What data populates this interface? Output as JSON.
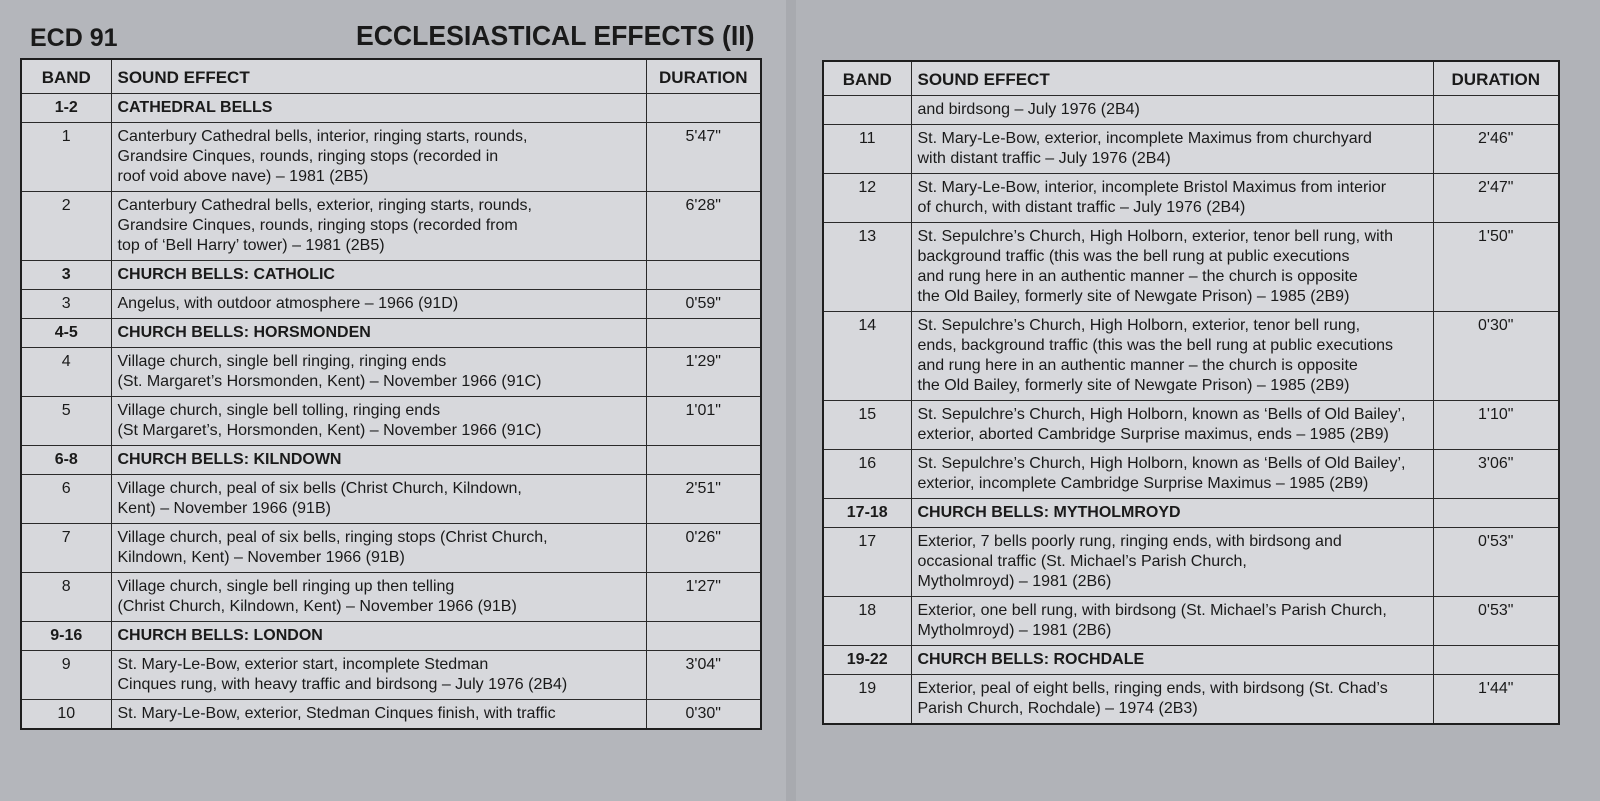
{
  "header": {
    "code": "ECD 91",
    "title": "ECCLESIASTICAL EFFECTS (II)"
  },
  "tables": [
    {
      "columns": [
        "BAND",
        "SOUND EFFECT",
        "DURATION"
      ],
      "rows": [
        {
          "band": "1-2",
          "heading": "CATHEDRAL BELLS"
        },
        {
          "band": "1",
          "lines": [
            "Canterbury Cathedral bells, interior, ringing starts, rounds,",
            "Grandsire Cinques, rounds, ringing stops (recorded in",
            "roof void above nave) – 1981 (2B5)"
          ],
          "duration": "5'47\""
        },
        {
          "band": "2",
          "lines": [
            "Canterbury Cathedral bells, exterior, ringing starts, rounds,",
            "Grandsire Cinques, rounds, ringing stops (recorded from",
            "top of ‘Bell Harry’ tower) – 1981 (2B5)"
          ],
          "duration": "6'28\""
        },
        {
          "band": "3",
          "heading": "CHURCH BELLS: CATHOLIC"
        },
        {
          "band": "3",
          "lines": [
            "Angelus, with outdoor atmosphere – 1966 (91D)"
          ],
          "duration": "0'59\""
        },
        {
          "band": "4-5",
          "heading": "CHURCH BELLS: HORSMONDEN"
        },
        {
          "band": "4",
          "lines": [
            "Village church, single bell ringing, ringing ends",
            "(St. Margaret’s Horsmonden, Kent) – November 1966 (91C)"
          ],
          "duration": "1'29\""
        },
        {
          "band": "5",
          "lines": [
            "Village church, single bell tolling, ringing ends",
            "(St Margaret’s, Horsmonden, Kent) – November 1966 (91C)"
          ],
          "duration": "1'01\""
        },
        {
          "band": "6-8",
          "heading": "CHURCH BELLS: KILNDOWN"
        },
        {
          "band": "6",
          "lines": [
            "Village church, peal of six bells (Christ Church, Kilndown,",
            "Kent) – November 1966 (91B)"
          ],
          "duration": "2'51\""
        },
        {
          "band": "7",
          "lines": [
            "Village church, peal of six bells, ringing stops (Christ Church,",
            "Kilndown, Kent) – November 1966 (91B)"
          ],
          "duration": "0'26\""
        },
        {
          "band": "8",
          "lines": [
            "Village church, single bell ringing up then telling",
            "(Christ Church, Kilndown, Kent) – November 1966 (91B)"
          ],
          "duration": "1'27\""
        },
        {
          "band": "9-16",
          "heading": "CHURCH BELLS: LONDON"
        },
        {
          "band": "9",
          "lines": [
            "St. Mary-Le-Bow, exterior start, incomplete Stedman",
            "Cinques rung, with heavy traffic and birdsong – July 1976 (2B4)"
          ],
          "duration": "3'04\""
        },
        {
          "band": "10",
          "lines": [
            "St. Mary-Le-Bow, exterior, Stedman Cinques finish, with traffic"
          ],
          "duration": "0'30\""
        }
      ]
    },
    {
      "columns": [
        "BAND",
        "SOUND EFFECT",
        "DURATION"
      ],
      "rows": [
        {
          "lines": [
            "and birdsong – July 1976 (2B4)"
          ]
        },
        {
          "band": "11",
          "lines": [
            "St. Mary-Le-Bow, exterior, incomplete Maximus from churchyard",
            "with distant traffic – July 1976 (2B4)"
          ],
          "duration": "2'46\""
        },
        {
          "band": "12",
          "lines": [
            "St. Mary-Le-Bow, interior, incomplete Bristol Maximus from interior",
            "of church, with distant traffic – July 1976 (2B4)"
          ],
          "duration": "2'47\""
        },
        {
          "band": "13",
          "lines": [
            "St. Sepulchre’s Church, High Holborn, exterior, tenor bell rung, with",
            "background traffic (this was the bell rung at public executions",
            "and rung here in an authentic manner – the church is opposite",
            "the Old Bailey, formerly site of Newgate Prison) – 1985 (2B9)"
          ],
          "duration": "1'50\""
        },
        {
          "band": "14",
          "lines": [
            "St. Sepulchre’s Church, High Holborn, exterior, tenor bell rung,",
            "ends, background traffic (this was the bell rung at public executions",
            "and rung here in an authentic manner – the church is opposite",
            "the Old Bailey, formerly site of Newgate Prison) – 1985 (2B9)"
          ],
          "duration": "0'30\""
        },
        {
          "band": "15",
          "lines": [
            "St. Sepulchre’s Church, High Holborn, known as ‘Bells of Old Bailey’,",
            "exterior, aborted Cambridge Surprise maximus, ends – 1985 (2B9)"
          ],
          "duration": "1'10\""
        },
        {
          "band": "16",
          "lines": [
            "St. Sepulchre’s Church, High Holborn, known as ‘Bells of Old Bailey’,",
            "exterior, incomplete Cambridge Surprise Maximus – 1985 (2B9)"
          ],
          "duration": "3'06\""
        },
        {
          "band": "17-18",
          "heading": "CHURCH BELLS: MYTHOLMROYD"
        },
        {
          "band": "17",
          "lines": [
            "Exterior, 7 bells poorly rung, ringing ends, with birdsong and",
            "occasional traffic (St. Michael’s Parish Church,",
            "Mytholmroyd) – 1981 (2B6)"
          ],
          "duration": "0'53\""
        },
        {
          "band": "18",
          "lines": [
            "Exterior, one bell rung, with birdsong (St. Michael’s Parish Church,",
            "Mytholmroyd) – 1981 (2B6)"
          ],
          "duration": "0'53\""
        },
        {
          "band": "19-22",
          "heading": "CHURCH BELLS: ROCHDALE"
        },
        {
          "band": "19",
          "lines": [
            "Exterior, peal of eight bells, ringing ends, with birdsong (St. Chad’s",
            "Parish Church, Rochdale) – 1974 (2B3)"
          ],
          "duration": "1'44\""
        }
      ]
    }
  ]
}
